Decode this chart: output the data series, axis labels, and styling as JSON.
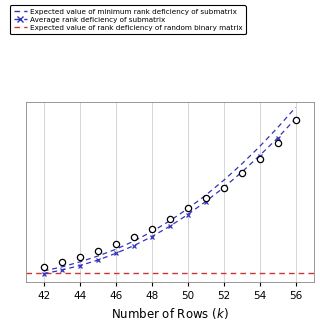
{
  "xlabel": "Number of Rows $(k)$",
  "xlim": [
    41.0,
    57.0
  ],
  "ylim": [
    -0.15,
    7.8
  ],
  "xticks": [
    42,
    44,
    46,
    48,
    50,
    52,
    54,
    56
  ],
  "yticks": [],
  "x_circles": [
    42,
    43,
    44,
    45,
    46,
    47,
    48,
    49,
    50,
    51,
    52,
    53,
    54,
    55,
    56
  ],
  "y_circles": [
    0.5,
    0.72,
    0.95,
    1.2,
    1.5,
    1.82,
    2.2,
    2.62,
    3.1,
    3.55,
    4.0,
    4.65,
    5.3,
    6.0,
    7.0
  ],
  "x_blue_exp": [
    42,
    43,
    44,
    45,
    46,
    47,
    48,
    49,
    50,
    51,
    52,
    53,
    54,
    55,
    56
  ],
  "y_blue_exp": [
    0.32,
    0.5,
    0.72,
    0.98,
    1.28,
    1.64,
    2.06,
    2.54,
    3.08,
    3.68,
    4.34,
    5.06,
    5.84,
    6.68,
    7.58
  ],
  "x_blue_avg": [
    42,
    43,
    44,
    45,
    46,
    47,
    48,
    49,
    50,
    51,
    52,
    53,
    54,
    55,
    56
  ],
  "y_blue_avg": [
    0.2,
    0.36,
    0.56,
    0.8,
    1.1,
    1.44,
    1.84,
    2.3,
    2.82,
    3.4,
    4.02,
    4.7,
    5.44,
    6.22,
    7.08
  ],
  "y_red": 0.22,
  "legend_labels": [
    "Expected value of minimum rank deficiency of submatrix",
    "Average rank deficiency of submatrix",
    "Expected value of rank deficiency of random binary matrix"
  ],
  "blue_color": "#3333bb",
  "red_color": "#cc3333",
  "plot_bg": "#ffffff",
  "fig_bg": "#ffffff",
  "grid_color": "#d0d0d0"
}
